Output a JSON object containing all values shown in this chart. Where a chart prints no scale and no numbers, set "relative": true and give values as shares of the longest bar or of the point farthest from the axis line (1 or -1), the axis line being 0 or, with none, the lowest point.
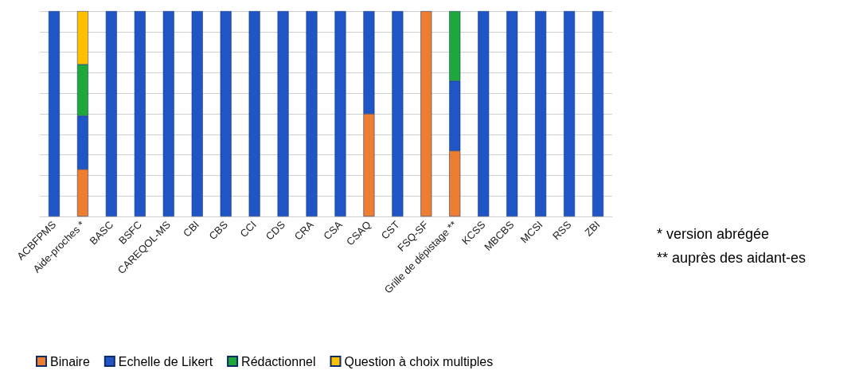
{
  "chart_data": {
    "type": "bar",
    "stacked": true,
    "relative": true,
    "grid": "y",
    "legend": "bottom left",
    "categories": [
      "ACBFPMS",
      "Aide-proches *",
      "BASC",
      "BSFC",
      "CAREQOL-MS",
      "CBI",
      "CBS",
      "CCI",
      "CDS",
      "CRA",
      "CSA",
      "CSAQ",
      "CST",
      "FSQ-SF",
      "Grille de dépistage **",
      "KCSS",
      "MBCBS",
      "MCSI",
      "RSS",
      "ZBI"
    ],
    "series": [
      {
        "name": "Binaire",
        "color": "#ed7d31",
        "values": [
          null,
          0.23,
          null,
          null,
          null,
          null,
          null,
          null,
          null,
          null,
          null,
          0.5,
          null,
          1,
          0.32,
          null,
          null,
          null,
          null,
          null
        ]
      },
      {
        "name": "Echelle de Likert",
        "color": "#1f55c4",
        "values": [
          1,
          0.26,
          1,
          1,
          1,
          1,
          1,
          1,
          1,
          1,
          1,
          0.5,
          1,
          null,
          0.34,
          1,
          1,
          1,
          1,
          1
        ]
      },
      {
        "name": "Rédactionnel",
        "color": "#1fa83a",
        "values": [
          null,
          0.25,
          null,
          null,
          null,
          null,
          null,
          null,
          null,
          null,
          null,
          null,
          null,
          null,
          0.34,
          null,
          null,
          null,
          null,
          null
        ]
      },
      {
        "name": "Question à choix multiples",
        "color": "#ffc000",
        "values": [
          null,
          0.26,
          null,
          null,
          null,
          null,
          null,
          null,
          null,
          null,
          null,
          null,
          null,
          null,
          null,
          null,
          null,
          null,
          null,
          null
        ]
      }
    ],
    "annotations": [
      "* version abrégée",
      "** auprès des aidant-es"
    ]
  }
}
